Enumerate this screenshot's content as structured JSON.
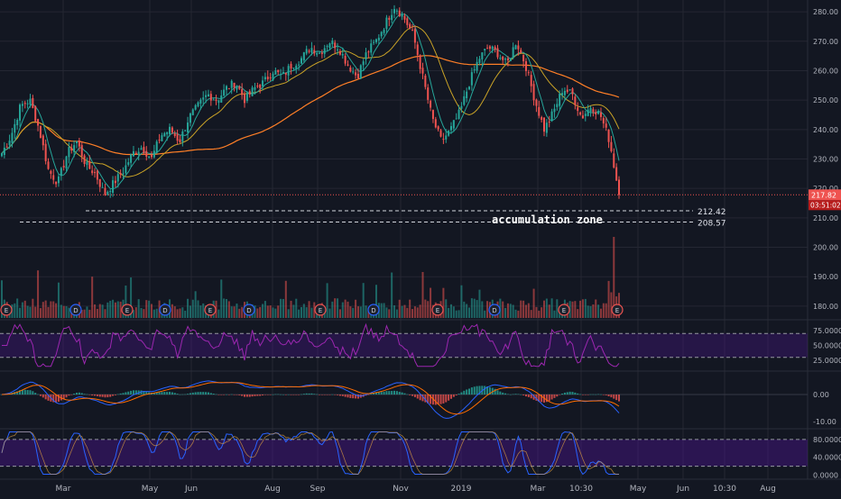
{
  "chart_data": {
    "type": "candlestick",
    "colors": {
      "background": "#131722",
      "grid": "#242733",
      "axis_text": "#b2b5be",
      "up": "#26a69a",
      "down": "#ef5350",
      "ma_fast": "#26a69a",
      "ma_mid": "#c9a227",
      "ma_slow": "#ff7f27",
      "rsi": "#9c27b0",
      "band": "#4a148c",
      "macd_line": "#2962ff",
      "signal_line": "#ff6d00",
      "stoch_k": "#2962ff",
      "stoch_d": "#e0a040",
      "price_tag": "#ef5350"
    },
    "x_ticks": [
      "Mar",
      "May",
      "Jun",
      "Aug",
      "Sep",
      "Nov",
      "2019",
      "Mar",
      "10:30",
      "May",
      "Jun",
      "10:30",
      "Aug"
    ],
    "price": {
      "y_ticks": [
        "280.00",
        "270.00",
        "260.00",
        "250.00",
        "240.00",
        "230.00",
        "220.00",
        "210.00",
        "200.00",
        "190.00",
        "180.00"
      ],
      "ylim": [
        176,
        284
      ],
      "last_price": "217.82",
      "countdown": "03:51:02",
      "levels": [
        {
          "label": "212.42",
          "value": 212.42
        },
        {
          "label": "208.57",
          "value": 208.57
        }
      ],
      "annotation": "accumulation zone",
      "events": [
        "E",
        "D",
        "E",
        "D",
        "E",
        "D",
        "E",
        "D",
        "E",
        "D",
        "E"
      ],
      "close_series": [
        232,
        238,
        248,
        250,
        240,
        226,
        222,
        232,
        236,
        228,
        225,
        218,
        222,
        226,
        232,
        234,
        230,
        238,
        240,
        236,
        244,
        248,
        252,
        250,
        254,
        256,
        250,
        254,
        256,
        260,
        258,
        262,
        264,
        268,
        266,
        270,
        268,
        262,
        258,
        266,
        270,
        276,
        282,
        278,
        272,
        258,
        244,
        236,
        240,
        246,
        256,
        264,
        268,
        266,
        262,
        270,
        262,
        250,
        240,
        246,
        254,
        252,
        244,
        248,
        245,
        236,
        218
      ]
    },
    "rsi": {
      "y_ticks": [
        "75.0000",
        "50.0000",
        "25.0000"
      ],
      "ylim": [
        10,
        90
      ],
      "bands": [
        70,
        30
      ]
    },
    "macd": {
      "y_ticks": [
        "0.00",
        "-10.00"
      ],
      "ylim": [
        -12,
        8
      ]
    },
    "stoch": {
      "y_ticks": [
        "80.0000",
        "40.0000",
        "0.0000"
      ],
      "ylim": [
        -5,
        100
      ],
      "bands": [
        80,
        20
      ]
    }
  }
}
